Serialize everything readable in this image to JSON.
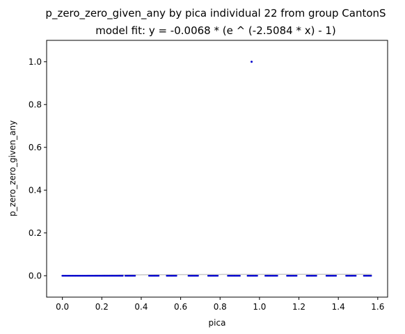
{
  "chart_data": {
    "type": "scatter",
    "title": "p_zero_zero_given_any by pica individual 22 from group CantonS",
    "subtitle": "model fit: y = -0.0068 * (e ^ (-2.5084 * x) - 1)",
    "xlabel": "pica",
    "ylabel": "p_zero_zero_given_any",
    "xlim": [
      -0.08,
      1.65
    ],
    "ylim": [
      -0.1,
      1.1
    ],
    "x_ticks": [
      0.0,
      0.2,
      0.4,
      0.6,
      0.8,
      1.0,
      1.2,
      1.4,
      1.6
    ],
    "x_tick_labels": [
      "0.0",
      "0.2",
      "0.4",
      "0.6",
      "0.8",
      "1.0",
      "1.2",
      "1.4",
      "1.6"
    ],
    "y_ticks": [
      0.0,
      0.2,
      0.4,
      0.6,
      0.8,
      1.0
    ],
    "y_tick_labels": [
      "0.0",
      "0.2",
      "0.4",
      "0.6",
      "0.8",
      "1.0"
    ],
    "grid": false,
    "point_color": "#0000cc",
    "fit_color": "#c8c8c8",
    "fit": {
      "a": -0.0068,
      "b": -2.5084
    },
    "point_segments": [
      [
        0.0,
        0.31
      ],
      [
        0.32,
        0.37
      ],
      [
        0.44,
        0.49
      ],
      [
        0.53,
        0.58
      ],
      [
        0.64,
        0.69
      ],
      [
        0.74,
        0.79
      ],
      [
        0.84,
        0.9
      ],
      [
        0.94,
        0.99
      ],
      [
        1.03,
        1.09
      ],
      [
        1.14,
        1.19
      ],
      [
        1.24,
        1.29
      ],
      [
        1.34,
        1.39
      ],
      [
        1.44,
        1.49
      ],
      [
        1.53,
        1.57
      ]
    ],
    "point_step": 0.006,
    "points": [
      {
        "x": 0.96,
        "y": 1.0
      }
    ]
  }
}
